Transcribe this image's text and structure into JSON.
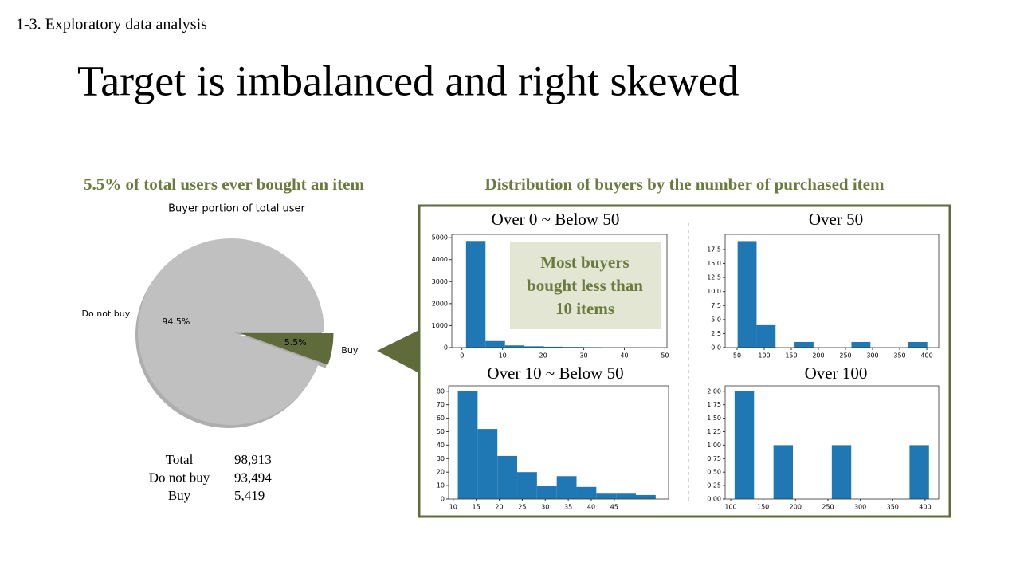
{
  "header": {
    "section": "1-3. Exploratory data analysis",
    "title": "Target is imbalanced and right skewed"
  },
  "left_heading": "5.5% of total users ever bought an item",
  "right_heading": "Distribution of buyers by the number of purchased item",
  "summary_table": {
    "rows": [
      [
        "Total",
        "98,913"
      ],
      [
        "Do not buy",
        "93,494"
      ],
      [
        "Buy",
        "5,419"
      ]
    ]
  },
  "callout": {
    "lines": [
      "Most buyers",
      "bought less than",
      "10 items"
    ]
  },
  "chart_data": [
    {
      "type": "pie",
      "title": "Buyer portion of total user",
      "categories": [
        "Do not buy",
        "Buy"
      ],
      "values": [
        94.5,
        5.5
      ],
      "value_labels": [
        "94.5%",
        "5.5%"
      ],
      "colors": [
        "#c0c0c0",
        "#5f6b3a"
      ],
      "explode": [
        0,
        0.1
      ],
      "shadow": true
    },
    {
      "type": "histogram",
      "title": "Over 0 ~ Below 50",
      "bins": [
        1,
        5.8,
        10.6,
        15.4,
        20.2,
        25,
        29.8,
        34.6,
        39.4,
        44.2,
        49
      ],
      "values": [
        4850,
        300,
        100,
        60,
        40,
        30,
        20,
        10,
        10,
        5
      ],
      "color": "#1f77b4",
      "xlim": [
        -2.5,
        50.5
      ],
      "ylim": [
        0,
        5150
      ],
      "xticks": [
        0,
        10,
        20,
        30,
        40,
        50
      ],
      "yticks": [
        0,
        1000,
        2000,
        3000,
        4000,
        5000
      ]
    },
    {
      "type": "histogram",
      "title": "Over 50",
      "bins": [
        51,
        86,
        121,
        156,
        191,
        226,
        261,
        296,
        331,
        366,
        401
      ],
      "values": [
        19,
        4,
        0,
        1,
        0,
        0,
        1,
        0,
        0,
        1
      ],
      "color": "#1f77b4",
      "xlim": [
        28,
        422
      ],
      "ylim": [
        0,
        20.2
      ],
      "xticks": [
        50,
        100,
        150,
        200,
        250,
        300,
        350,
        400
      ],
      "yticks": [
        {
          "value": 0,
          "label": "0.0"
        },
        {
          "value": 2.5,
          "label": "2.5"
        },
        {
          "value": 5,
          "label": "5.0"
        },
        {
          "value": 7.5,
          "label": "7.5"
        },
        {
          "value": 10,
          "label": "10.0"
        },
        {
          "value": 12.5,
          "label": "12.5"
        },
        {
          "value": 15,
          "label": "15.0"
        },
        {
          "value": 17.5,
          "label": "17.5"
        }
      ]
    },
    {
      "type": "histogram",
      "title": "Over 10 ~ Below 50",
      "bins": [
        11,
        15.3,
        19.6,
        23.9,
        28.2,
        32.5,
        36.8,
        41.1,
        45.4,
        49.7,
        54
      ],
      "values": [
        80,
        52,
        32,
        20,
        10,
        17,
        9,
        4,
        4,
        3
      ],
      "color": "#1f77b4",
      "xlim": [
        9,
        56.8
      ],
      "ylim": [
        0,
        84
      ],
      "xticks": [
        10,
        15,
        20,
        25,
        30,
        35,
        40,
        45
      ],
      "yticks": [
        0,
        10,
        20,
        30,
        40,
        50,
        60,
        70,
        80
      ]
    },
    {
      "type": "histogram",
      "title": "Over 100",
      "bins": [
        106,
        136,
        166,
        196,
        226,
        256,
        286,
        316,
        346,
        376,
        406
      ],
      "values": [
        2,
        0,
        1,
        0,
        0,
        1,
        0,
        0,
        0,
        1
      ],
      "color": "#1f77b4",
      "xlim": [
        91.4,
        421
      ],
      "ylim": [
        0,
        2.1
      ],
      "xticks": [
        100,
        150,
        200,
        250,
        300,
        350,
        400
      ],
      "yticks": [
        {
          "value": 0,
          "label": "0.00"
        },
        {
          "value": 0.25,
          "label": "0.25"
        },
        {
          "value": 0.5,
          "label": "0.50"
        },
        {
          "value": 0.75,
          "label": "0.75"
        },
        {
          "value": 1,
          "label": "1.00"
        },
        {
          "value": 1.25,
          "label": "1.25"
        },
        {
          "value": 1.5,
          "label": "1.50"
        },
        {
          "value": 1.75,
          "label": "1.75"
        },
        {
          "value": 2,
          "label": "2.00"
        }
      ]
    }
  ]
}
